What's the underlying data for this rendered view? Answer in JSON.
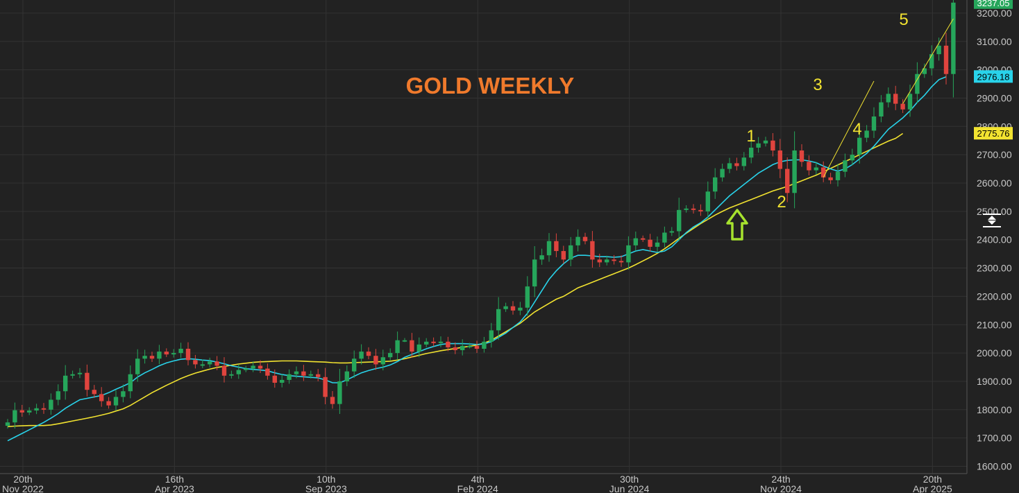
{
  "chart_data": {
    "type": "candlestick",
    "title": "GOLD WEEKLY",
    "y_axis": {
      "min": 1600,
      "max": 3237.05,
      "ticks": [
        "3200.00",
        "3100.00",
        "3000.00",
        "2900.00",
        "2800.00",
        "2700.00",
        "2600.00",
        "2500.00",
        "2400.00",
        "2300.00",
        "2200.00",
        "2100.00",
        "2000.00",
        "1900.00",
        "1800.00",
        "1700.00",
        "1600.00"
      ],
      "tick_values": [
        3200,
        3100,
        3000,
        2900,
        2800,
        2700,
        2600,
        2500,
        2400,
        2300,
        2200,
        2100,
        2000,
        1900,
        1800,
        1700,
        1600
      ]
    },
    "x_axis": {
      "ticks": [
        {
          "day": "20th",
          "month": "Nov 2022",
          "week": 0
        },
        {
          "day": "16th",
          "month": "Apr 2023",
          "week": 21
        },
        {
          "day": "10th",
          "month": "Sep 2023",
          "week": 42
        },
        {
          "day": "4th",
          "month": "Feb 2024",
          "week": 63
        },
        {
          "day": "30th",
          "month": "Jun 2024",
          "week": 84
        },
        {
          "day": "24th",
          "month": "Nov 2024",
          "week": 105
        },
        {
          "day": "20th",
          "month": "Apr 2025",
          "week": 126
        }
      ]
    },
    "price_badges": [
      {
        "label": "3237.05",
        "value": 3237.05,
        "bg": "#26a65b",
        "text": "light"
      },
      {
        "label": "2976.18",
        "value": 2976.18,
        "bg": "#29d3ea",
        "text": "dark"
      },
      {
        "label": "2775.76",
        "value": 2775.76,
        "bg": "#f2e330",
        "text": "dark"
      }
    ],
    "colors": {
      "up": "#26a65b",
      "down": "#e0443e",
      "ma_fast": "#29d3ea",
      "ma_slow": "#f2e330",
      "arrow": "#a6e22e",
      "grid": "#333333",
      "background": "#222222"
    },
    "closes": [
      1755,
      1798,
      1790,
      1797,
      1805,
      1800,
      1835,
      1865,
      1920,
      1925,
      1930,
      1870,
      1855,
      1830,
      1815,
      1845,
      1865,
      1925,
      1980,
      1990,
      1980,
      2005,
      1995,
      2000,
      2015,
      1975,
      1960,
      1960,
      1970,
      1955,
      1920,
      1925,
      1940,
      1945,
      1955,
      1945,
      1920,
      1895,
      1905,
      1925,
      1935,
      1920,
      1925,
      1915,
      1845,
      1820,
      1900,
      1935,
      1980,
      2005,
      1990,
      1960,
      1985,
      2000,
      2045,
      2045,
      2005,
      2030,
      2040,
      2035,
      2040,
      2020,
      2010,
      2025,
      2025,
      2015,
      2040,
      2080,
      2155,
      2165,
      2150,
      2160,
      2235,
      2330,
      2345,
      2395,
      2360,
      2330,
      2380,
      2410,
      2395,
      2330,
      2320,
      2330,
      2325,
      2320,
      2380,
      2405,
      2400,
      2375,
      2390,
      2425,
      2430,
      2505,
      2510,
      2505,
      2500,
      2570,
      2620,
      2650,
      2670,
      2660,
      2690,
      2725,
      2740,
      2750,
      2715,
      2650,
      2565,
      2715,
      2675,
      2645,
      2655,
      2620,
      2610,
      2640,
      2680,
      2700,
      2760,
      2785,
      2835,
      2885,
      2915,
      2880,
      2860,
      2915,
      2985,
      3005,
      3055,
      3085,
      2985,
      3237
    ],
    "ma_fast": [
      1690,
      1703,
      1716,
      1729,
      1742,
      1755,
      1770,
      1786,
      1805,
      1820,
      1835,
      1840,
      1845,
      1850,
      1860,
      1872,
      1883,
      1895,
      1915,
      1930,
      1942,
      1955,
      1965,
      1972,
      1978,
      1980,
      1978,
      1975,
      1973,
      1968,
      1962,
      1955,
      1950,
      1945,
      1942,
      1940,
      1937,
      1930,
      1924,
      1920,
      1918,
      1916,
      1914,
      1912,
      1905,
      1895,
      1895,
      1905,
      1918,
      1930,
      1938,
      1945,
      1950,
      1958,
      1970,
      1985,
      1995,
      2005,
      2015,
      2023,
      2030,
      2033,
      2033,
      2033,
      2032,
      2030,
      2032,
      2040,
      2055,
      2070,
      2090,
      2110,
      2140,
      2180,
      2220,
      2260,
      2290,
      2315,
      2335,
      2345,
      2345,
      2343,
      2340,
      2340,
      2338,
      2340,
      2350,
      2360,
      2365,
      2360,
      2355,
      2360,
      2375,
      2400,
      2425,
      2445,
      2460,
      2480,
      2505,
      2530,
      2555,
      2575,
      2595,
      2615,
      2635,
      2650,
      2665,
      2675,
      2680,
      2682,
      2682,
      2678,
      2672,
      2660,
      2650,
      2642,
      2650,
      2665,
      2685,
      2705,
      2730,
      2760,
      2790,
      2810,
      2830,
      2855,
      2885,
      2910,
      2940,
      2965,
      2975
    ],
    "ma_slow": [
      1740,
      1742,
      1743,
      1744,
      1744,
      1744,
      1746,
      1750,
      1755,
      1760,
      1765,
      1770,
      1775,
      1781,
      1787,
      1795,
      1803,
      1815,
      1830,
      1845,
      1860,
      1873,
      1886,
      1898,
      1910,
      1920,
      1929,
      1936,
      1943,
      1949,
      1953,
      1957,
      1961,
      1964,
      1967,
      1969,
      1970,
      1971,
      1972,
      1972,
      1972,
      1971,
      1970,
      1969,
      1968,
      1966,
      1965,
      1965,
      1966,
      1967,
      1968,
      1969,
      1970,
      1971,
      1975,
      1980,
      1986,
      1992,
      1998,
      2003,
      2008,
      2012,
      2016,
      2020,
      2024,
      2028,
      2035,
      2045,
      2060,
      2075,
      2090,
      2105,
      2125,
      2145,
      2160,
      2175,
      2190,
      2200,
      2215,
      2230,
      2240,
      2250,
      2260,
      2270,
      2280,
      2290,
      2300,
      2312,
      2325,
      2338,
      2352,
      2368,
      2386,
      2405,
      2423,
      2440,
      2457,
      2472,
      2487,
      2500,
      2512,
      2522,
      2532,
      2542,
      2552,
      2562,
      2572,
      2580,
      2588,
      2598,
      2608,
      2618,
      2628,
      2640,
      2652,
      2664,
      2676,
      2688,
      2700,
      2712,
      2724,
      2736,
      2748,
      2758,
      2775
    ]
  }
}
